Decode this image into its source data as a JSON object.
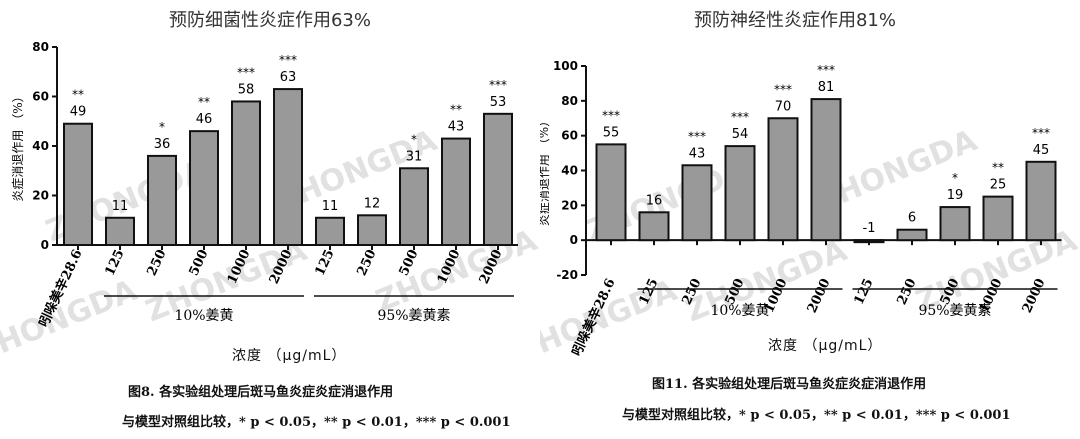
{
  "figures": [
    {
      "title": "预防细菌性炎症作用63%",
      "caption": "图8. 各实验组处理后斑马鱼炎症炎症消退作用",
      "concentration_label": "浓度 （μg/mL）",
      "significance_note": [
        "与模型对照组比较，* p < 0.05，",
        "** p < 0.01，",
        "*** p < 0.001"
      ]
    },
    {
      "title": "预防神经性炎症作用81%",
      "caption": "图11. 各实验组处理后斑马鱼炎症炎症消退作用",
      "concentration_label": "浓度 （μg/mL）",
      "significance_note": [
        "与模型对照组比较，* p < 0.05，",
        "** p < 0.01，",
        "*** p < 0.001"
      ]
    }
  ],
  "watermark_text": "ZHONGDA",
  "chart_data": [
    {
      "type": "bar",
      "ylabel": "炎症消退作用 （%）",
      "ylim": [
        0,
        80
      ],
      "yticks": [
        0,
        20,
        40,
        60,
        80
      ],
      "categories": [
        "吲哚美辛28.6",
        "125",
        "250",
        "500",
        "1000",
        "2000",
        "125",
        "250",
        "500",
        "1000",
        "2000"
      ],
      "values": [
        49,
        11,
        36,
        46,
        58,
        63,
        11,
        12,
        31,
        43,
        53
      ],
      "value_labels": [
        "49",
        "11",
        "36",
        "46",
        "58",
        "63",
        "11",
        "12",
        "31",
        "43",
        "53"
      ],
      "significance": [
        "**",
        "",
        "*",
        "**",
        "***",
        "***",
        "",
        "",
        "*",
        "**",
        "***"
      ],
      "groups": [
        {
          "label": "10%姜黄",
          "from": 1,
          "to": 5
        },
        {
          "label": "95%姜黄素",
          "from": 6,
          "to": 10
        }
      ],
      "bar_color": "#999999"
    },
    {
      "type": "bar",
      "ylabel": "炎症消退作用 （%）",
      "ylim": [
        -20,
        100
      ],
      "yticks": [
        -20,
        0,
        20,
        40,
        60,
        80,
        100
      ],
      "categories": [
        "吲哚美辛28.6",
        "125",
        "250",
        "500",
        "1000",
        "2000",
        "125",
        "250",
        "500",
        "1000",
        "2000"
      ],
      "values": [
        55,
        16,
        43,
        54,
        70,
        81,
        -1,
        6,
        19,
        25,
        45
      ],
      "value_labels": [
        "55",
        "16",
        "43",
        "54",
        "70",
        "81",
        "-1",
        "6",
        "19",
        "25",
        "45"
      ],
      "significance": [
        "***",
        "",
        "***",
        "***",
        "***",
        "***",
        "",
        "",
        "*",
        "**",
        "***"
      ],
      "groups": [
        {
          "label": "10%姜黄",
          "from": 1,
          "to": 5
        },
        {
          "label": "95%姜黄素",
          "from": 6,
          "to": 10
        }
      ],
      "bar_color": "#999999"
    }
  ]
}
